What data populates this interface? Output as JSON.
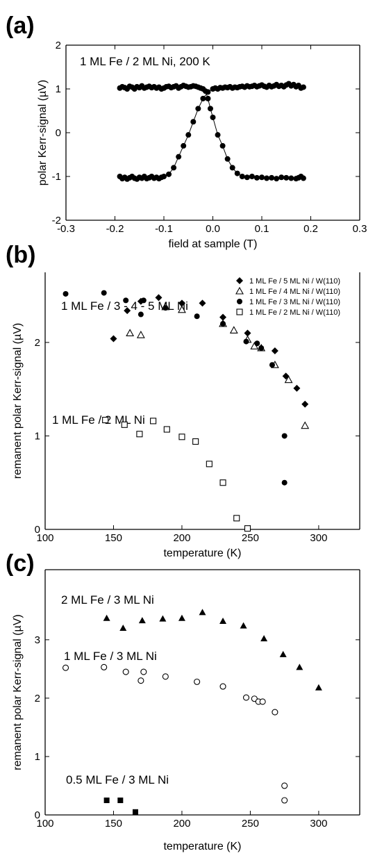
{
  "chart_data": [
    {
      "type": "line",
      "panel_label": "(a)",
      "annotation": "1 ML Fe / 2 ML Ni, 200 K",
      "xlabel": "field at sample (T)",
      "ylabel": "polar Kerr-signal (µV)",
      "xlim": [
        -0.3,
        0.3
      ],
      "ylim": [
        -2,
        2
      ],
      "xticks": [
        "-0.3",
        "-0.2",
        "-0.1",
        "0.0",
        "0.1",
        "0.2",
        "0.3"
      ],
      "yticks": [
        "-2",
        "-1",
        "0",
        "1",
        "2"
      ],
      "series": [
        {
          "marker": "filled-circle",
          "x": [
            -0.19,
            -0.185,
            -0.18,
            -0.175,
            -0.17,
            -0.165,
            -0.16,
            -0.155,
            -0.15,
            -0.145,
            -0.14,
            -0.135,
            -0.13,
            -0.125,
            -0.12,
            -0.115,
            -0.11,
            -0.105,
            -0.1,
            -0.095,
            -0.09,
            -0.085,
            -0.08,
            -0.075,
            -0.07,
            -0.065,
            -0.06,
            -0.055,
            -0.05,
            -0.045,
            -0.04,
            -0.035,
            -0.03,
            -0.025,
            -0.02,
            -0.015,
            -0.01,
            -0.005,
            0.0,
            0.01,
            0.02,
            0.03,
            0.04,
            0.05,
            0.06,
            0.07,
            0.08,
            0.09,
            0.1,
            0.11,
            0.12,
            0.13,
            0.14,
            0.15,
            0.16,
            0.17,
            0.175,
            0.18,
            0.185
          ],
          "y": [
            1.02,
            1.05,
            1.03,
            1.0,
            1.06,
            1.04,
            1.0,
            1.05,
            1.03,
            1.07,
            1.02,
            1.04,
            1.06,
            1.03,
            1.05,
            1.02,
            1.04,
            1.0,
            1.02,
            1.05,
            1.06,
            1.03,
            1.05,
            1.07,
            1.02,
            1.05,
            1.08,
            1.06,
            1.04,
            1.05,
            1.07,
            1.06,
            1.04,
            1.02,
            1.0,
            0.95,
            0.78,
            0.55,
            0.35,
            -0.05,
            -0.3,
            -0.6,
            -0.8,
            -0.93,
            -1.0,
            -1.02,
            -1.0,
            -1.03,
            -1.02,
            -1.04,
            -1.03,
            -1.05,
            -1.02,
            -1.03,
            -1.04,
            -1.05,
            -1.03,
            -1.0,
            -1.04
          ]
        },
        {
          "marker": "filled-circle",
          "x": [
            -0.19,
            -0.185,
            -0.18,
            -0.175,
            -0.17,
            -0.165,
            -0.16,
            -0.155,
            -0.15,
            -0.145,
            -0.14,
            -0.135,
            -0.13,
            -0.125,
            -0.12,
            -0.115,
            -0.11,
            -0.105,
            -0.1,
            -0.09,
            -0.08,
            -0.07,
            -0.06,
            -0.05,
            -0.04,
            -0.03,
            -0.02,
            -0.01,
            0.0,
            0.005,
            0.01,
            0.015,
            0.02,
            0.025,
            0.03,
            0.035,
            0.04,
            0.045,
            0.05,
            0.055,
            0.06,
            0.065,
            0.07,
            0.075,
            0.08,
            0.085,
            0.09,
            0.095,
            0.1,
            0.105,
            0.11,
            0.115,
            0.12,
            0.125,
            0.13,
            0.135,
            0.14,
            0.145,
            0.15,
            0.155,
            0.16,
            0.165,
            0.17,
            0.175,
            0.18,
            0.185
          ],
          "y": [
            -1.0,
            -1.05,
            -1.02,
            -1.06,
            -1.03,
            -1.0,
            -1.04,
            -1.06,
            -1.02,
            -1.04,
            -1.0,
            -1.05,
            -1.03,
            -1.0,
            -1.04,
            -1.02,
            -1.05,
            -1.02,
            -1.0,
            -0.95,
            -0.8,
            -0.55,
            -0.3,
            -0.05,
            0.25,
            0.55,
            0.78,
            0.93,
            1.0,
            1.02,
            1.0,
            1.03,
            1.02,
            1.04,
            1.03,
            1.05,
            1.02,
            1.04,
            1.03,
            1.05,
            1.06,
            1.04,
            1.07,
            1.05,
            1.06,
            1.08,
            1.05,
            1.07,
            1.09,
            1.06,
            1.04,
            1.08,
            1.05,
            1.07,
            1.1,
            1.06,
            1.08,
            1.05,
            1.09,
            1.12,
            1.07,
            1.1,
            1.05,
            1.08,
            1.02,
            1.04
          ]
        }
      ]
    },
    {
      "type": "scatter",
      "panel_label": "(b)",
      "annotations": [
        "1 ML Fe / 3 - 4 - 5 ML Ni",
        "1 ML Fe / 2 ML Ni"
      ],
      "xlabel": "temperature (K)",
      "ylabel": "remanent polar Kerr-signal (µV)",
      "xlim": [
        100,
        330
      ],
      "ylim": [
        0,
        2.75
      ],
      "xticks": [
        "100",
        "150",
        "200",
        "250",
        "300"
      ],
      "yticks": [
        "0",
        "1",
        "2"
      ],
      "legend": "top-right",
      "series": [
        {
          "name": "1 ML Fe / 5 ML Ni /  W(110)",
          "marker": "filled-diamond",
          "x": [
            150,
            160,
            170,
            183,
            200,
            215,
            230,
            248,
            268,
            276,
            284,
            290
          ],
          "y": [
            2.04,
            2.34,
            2.44,
            2.48,
            2.42,
            2.42,
            2.27,
            2.1,
            1.91,
            1.64,
            1.51,
            1.34
          ]
        },
        {
          "name": "1 ML Fe / 4 ML Ni /  W(110)",
          "marker": "open-triangle",
          "x": [
            162,
            170,
            188,
            200,
            230,
            238,
            248,
            253,
            258,
            268,
            278,
            290
          ],
          "y": [
            2.1,
            2.08,
            2.38,
            2.35,
            2.2,
            2.13,
            2.03,
            1.96,
            1.94,
            1.76,
            1.6,
            1.11
          ]
        },
        {
          "name": "1 ML Fe / 3 ML Ni /  W(110)",
          "marker": "filled-circle",
          "x": [
            115,
            143,
            159,
            170,
            172,
            188,
            211,
            230,
            247,
            255,
            258,
            266,
            275,
            275
          ],
          "y": [
            2.52,
            2.53,
            2.45,
            2.3,
            2.45,
            2.37,
            2.28,
            2.2,
            2.01,
            1.99,
            1.94,
            1.76,
            1.0,
            0.5
          ]
        },
        {
          "name": "1 ML Fe / 2 ML Ni /  W(110)",
          "marker": "open-square",
          "x": [
            144,
            158,
            169,
            179,
            189,
            200,
            210,
            220,
            230,
            240,
            248
          ],
          "y": [
            1.17,
            1.12,
            1.02,
            1.16,
            1.07,
            0.99,
            0.94,
            0.7,
            0.5,
            0.12,
            0.01
          ]
        }
      ]
    },
    {
      "type": "scatter",
      "panel_label": "(c)",
      "annotations": [
        "2 ML Fe / 3 ML Ni",
        "1 ML Fe / 3 ML Ni",
        "0.5 ML Fe / 3 ML Ni"
      ],
      "xlabel": "temperature (K)",
      "ylabel": "remanent polar Kerr-signal (µV)",
      "xlim": [
        100,
        330
      ],
      "ylim": [
        0,
        4.2
      ],
      "xticks": [
        "100",
        "150",
        "200",
        "250",
        "300"
      ],
      "yticks": [
        "0",
        "1",
        "2",
        "3"
      ],
      "series": [
        {
          "marker": "filled-triangle",
          "x": [
            145,
            157,
            171,
            186,
            200,
            215,
            230,
            245,
            260,
            274,
            286,
            300
          ],
          "y": [
            3.37,
            3.2,
            3.33,
            3.36,
            3.37,
            3.47,
            3.32,
            3.24,
            3.02,
            2.75,
            2.53,
            2.18
          ]
        },
        {
          "marker": "open-circle",
          "x": [
            115,
            143,
            159,
            170,
            172,
            188,
            211,
            230,
            247,
            253,
            256,
            259,
            268,
            275,
            275
          ],
          "y": [
            2.52,
            2.53,
            2.45,
            2.3,
            2.45,
            2.37,
            2.28,
            2.2,
            2.01,
            1.99,
            1.94,
            1.94,
            1.76,
            0.5,
            0.25
          ]
        },
        {
          "marker": "filled-square",
          "x": [
            145,
            155,
            166
          ],
          "y": [
            0.25,
            0.25,
            0.05
          ]
        }
      ]
    }
  ]
}
